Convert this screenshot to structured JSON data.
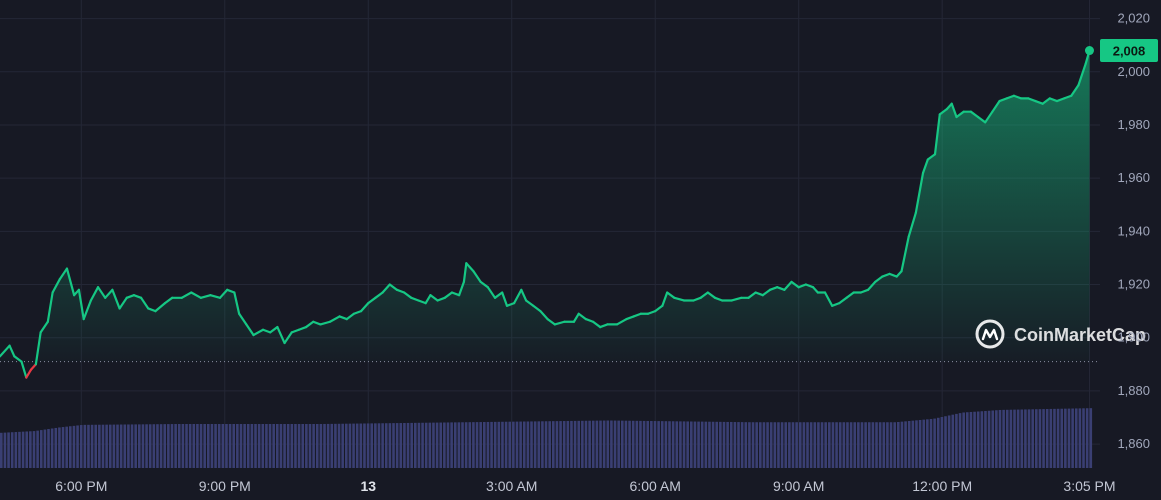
{
  "chart_data": {
    "type": "area",
    "y_ticks": [
      1860,
      1880,
      1900,
      1920,
      1940,
      1960,
      1980,
      2000,
      2020
    ],
    "y_tick_labels": [
      "1,860",
      "1,880",
      "1,900",
      "1,920",
      "1,940",
      "1,960",
      "1,980",
      "2,000",
      "2,020"
    ],
    "ylim": [
      1851,
      2027
    ],
    "xlim": [
      16.3,
      39.3
    ],
    "x_ticks": [
      {
        "value": 18,
        "label": "6:00 PM"
      },
      {
        "value": 21,
        "label": "9:00 PM"
      },
      {
        "value": 24,
        "label": "13"
      },
      {
        "value": 27,
        "label": "3:00 AM"
      },
      {
        "value": 30,
        "label": "6:00 AM"
      },
      {
        "value": 33,
        "label": "9:00 AM"
      },
      {
        "value": 36,
        "label": "12:00 PM"
      },
      {
        "value": 39.08,
        "label": "3:05 PM"
      }
    ],
    "baseline_price": 1891,
    "current_price_label": "2,008",
    "grid": true,
    "series": [
      {
        "values": [
          [
            16.3,
            1893
          ],
          [
            16.5,
            1897
          ],
          [
            16.6,
            1893
          ],
          [
            16.75,
            1891
          ],
          [
            16.85,
            1885
          ],
          [
            16.95,
            1888
          ],
          [
            17.05,
            1890
          ],
          [
            17.15,
            1902
          ],
          [
            17.3,
            1906
          ],
          [
            17.4,
            1917
          ],
          [
            17.55,
            1922
          ],
          [
            17.7,
            1926
          ],
          [
            17.85,
            1916
          ],
          [
            17.95,
            1918
          ],
          [
            18.05,
            1907
          ],
          [
            18.2,
            1914
          ],
          [
            18.35,
            1919
          ],
          [
            18.5,
            1915
          ],
          [
            18.65,
            1918
          ],
          [
            18.8,
            1911
          ],
          [
            18.95,
            1915
          ],
          [
            19.1,
            1916
          ],
          [
            19.25,
            1915
          ],
          [
            19.4,
            1911
          ],
          [
            19.55,
            1910
          ],
          [
            19.75,
            1913
          ],
          [
            19.9,
            1915
          ],
          [
            20.1,
            1915
          ],
          [
            20.3,
            1917
          ],
          [
            20.5,
            1915
          ],
          [
            20.7,
            1916
          ],
          [
            20.9,
            1915
          ],
          [
            21.05,
            1918
          ],
          [
            21.2,
            1917
          ],
          [
            21.3,
            1909
          ],
          [
            21.45,
            1905
          ],
          [
            21.6,
            1901
          ],
          [
            21.8,
            1903
          ],
          [
            21.95,
            1902
          ],
          [
            22.1,
            1904
          ],
          [
            22.25,
            1898
          ],
          [
            22.4,
            1902
          ],
          [
            22.55,
            1903
          ],
          [
            22.7,
            1904
          ],
          [
            22.85,
            1906
          ],
          [
            23.0,
            1905
          ],
          [
            23.2,
            1906
          ],
          [
            23.4,
            1908
          ],
          [
            23.55,
            1907
          ],
          [
            23.7,
            1909
          ],
          [
            23.85,
            1910
          ],
          [
            24.0,
            1913
          ],
          [
            24.15,
            1915
          ],
          [
            24.3,
            1917
          ],
          [
            24.45,
            1920
          ],
          [
            24.6,
            1918
          ],
          [
            24.75,
            1917
          ],
          [
            24.9,
            1915
          ],
          [
            25.05,
            1914
          ],
          [
            25.2,
            1913
          ],
          [
            25.3,
            1916
          ],
          [
            25.45,
            1914
          ],
          [
            25.6,
            1915
          ],
          [
            25.75,
            1917
          ],
          [
            25.9,
            1916
          ],
          [
            26.0,
            1921
          ],
          [
            26.05,
            1928
          ],
          [
            26.2,
            1925
          ],
          [
            26.35,
            1921
          ],
          [
            26.5,
            1919
          ],
          [
            26.65,
            1915
          ],
          [
            26.8,
            1917
          ],
          [
            26.9,
            1912
          ],
          [
            27.05,
            1913
          ],
          [
            27.2,
            1918
          ],
          [
            27.3,
            1914
          ],
          [
            27.45,
            1912
          ],
          [
            27.6,
            1910
          ],
          [
            27.75,
            1907
          ],
          [
            27.9,
            1905
          ],
          [
            28.1,
            1906
          ],
          [
            28.3,
            1906
          ],
          [
            28.4,
            1909
          ],
          [
            28.55,
            1907
          ],
          [
            28.7,
            1906
          ],
          [
            28.85,
            1904
          ],
          [
            29.0,
            1905
          ],
          [
            29.2,
            1905
          ],
          [
            29.4,
            1907
          ],
          [
            29.55,
            1908
          ],
          [
            29.7,
            1909
          ],
          [
            29.85,
            1909
          ],
          [
            30.0,
            1910
          ],
          [
            30.15,
            1912
          ],
          [
            30.25,
            1917
          ],
          [
            30.4,
            1915
          ],
          [
            30.6,
            1914
          ],
          [
            30.8,
            1914
          ],
          [
            30.95,
            1915
          ],
          [
            31.1,
            1917
          ],
          [
            31.25,
            1915
          ],
          [
            31.4,
            1914
          ],
          [
            31.6,
            1914
          ],
          [
            31.8,
            1915
          ],
          [
            31.95,
            1915
          ],
          [
            32.1,
            1917
          ],
          [
            32.25,
            1916
          ],
          [
            32.4,
            1918
          ],
          [
            32.55,
            1919
          ],
          [
            32.7,
            1918
          ],
          [
            32.85,
            1921
          ],
          [
            33.0,
            1919
          ],
          [
            33.15,
            1920
          ],
          [
            33.3,
            1919
          ],
          [
            33.4,
            1917
          ],
          [
            33.55,
            1917
          ],
          [
            33.7,
            1912
          ],
          [
            33.85,
            1913
          ],
          [
            34.0,
            1915
          ],
          [
            34.15,
            1917
          ],
          [
            34.3,
            1917
          ],
          [
            34.45,
            1918
          ],
          [
            34.6,
            1921
          ],
          [
            34.75,
            1923
          ],
          [
            34.9,
            1924
          ],
          [
            35.05,
            1923
          ],
          [
            35.15,
            1925
          ],
          [
            35.3,
            1938
          ],
          [
            35.45,
            1947
          ],
          [
            35.6,
            1962
          ],
          [
            35.7,
            1967
          ],
          [
            35.85,
            1969
          ],
          [
            35.95,
            1984
          ],
          [
            36.1,
            1986
          ],
          [
            36.2,
            1988
          ],
          [
            36.3,
            1983
          ],
          [
            36.45,
            1985
          ],
          [
            36.6,
            1985
          ],
          [
            36.75,
            1983
          ],
          [
            36.9,
            1981
          ],
          [
            37.05,
            1985
          ],
          [
            37.2,
            1989
          ],
          [
            37.35,
            1990
          ],
          [
            37.5,
            1991
          ],
          [
            37.65,
            1990
          ],
          [
            37.8,
            1990
          ],
          [
            37.95,
            1989
          ],
          [
            38.1,
            1988
          ],
          [
            38.25,
            1990
          ],
          [
            38.4,
            1989
          ],
          [
            38.55,
            1990
          ],
          [
            38.7,
            1991
          ],
          [
            38.85,
            1995
          ],
          [
            39.0,
            2003
          ],
          [
            39.08,
            2008
          ]
        ]
      }
    ],
    "volume": {
      "start_x": 16.3,
      "end_x": 39.08,
      "levels": [
        [
          16.3,
          0.4
        ],
        [
          17.0,
          0.42
        ],
        [
          17.5,
          0.46
        ],
        [
          18.0,
          0.49
        ],
        [
          20.0,
          0.5
        ],
        [
          23.0,
          0.5
        ],
        [
          26.0,
          0.52
        ],
        [
          29.0,
          0.54
        ],
        [
          32.0,
          0.52
        ],
        [
          35.0,
          0.52
        ],
        [
          35.8,
          0.56
        ],
        [
          36.4,
          0.63
        ],
        [
          37.2,
          0.66
        ],
        [
          39.08,
          0.68
        ]
      ]
    },
    "colors": {
      "up_line": "#16c784",
      "down_line": "#ea3943",
      "volume": "#3a3f73",
      "grid": "#242736",
      "baseline": "#8a8fa3",
      "badge": "#16c784"
    }
  },
  "watermark": {
    "text": "CoinMarketCap",
    "logo_icon": "coinmarketcap-logo"
  }
}
